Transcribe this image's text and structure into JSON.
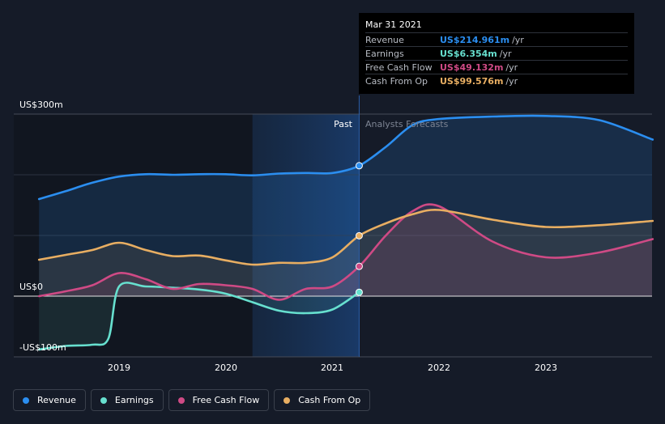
{
  "chart_data": {
    "type": "area",
    "y_tick_labels": [
      "US$300m",
      "US$0",
      "-US$100m"
    ],
    "x_tick_labels": [
      "2019",
      "2020",
      "2021",
      "2022",
      "2023"
    ],
    "ylim": [
      -100,
      300
    ],
    "past_label": "Past",
    "forecast_label": "Analysts Forecasts",
    "series": [
      {
        "name": "Revenue",
        "color": "#2b8ef0",
        "x": [
          2018.25,
          2018.5,
          2018.75,
          2019.0,
          2019.25,
          2019.5,
          2019.75,
          2020.0,
          2020.25,
          2020.5,
          2020.75,
          2021.0,
          2021.25,
          2021.5,
          2021.75,
          2022.0,
          2022.5,
          2023.0,
          2023.5,
          2024.0
        ],
        "values": [
          160,
          173,
          187,
          197,
          201,
          200,
          201,
          201,
          199,
          202,
          203,
          203,
          214.961,
          246,
          282,
          292,
          296,
          297,
          290,
          258
        ]
      },
      {
        "name": "Earnings",
        "color": "#67e0cf",
        "x": [
          2018.25,
          2018.5,
          2018.75,
          2018.9,
          2019.0,
          2019.25,
          2019.5,
          2019.75,
          2020.0,
          2020.25,
          2020.5,
          2020.75,
          2021.0,
          2021.25
        ],
        "values": [
          -88,
          -82,
          -80,
          -70,
          16,
          16,
          14,
          11,
          4,
          -10,
          -24,
          -28,
          -22,
          6.354
        ]
      },
      {
        "name": "Free Cash Flow",
        "color": "#cf4a85",
        "x": [
          2018.25,
          2018.5,
          2018.75,
          2019.0,
          2019.25,
          2019.5,
          2019.75,
          2020.0,
          2020.25,
          2020.5,
          2020.75,
          2021.0,
          2021.25,
          2021.5,
          2021.75,
          2022.0,
          2022.5,
          2023.0,
          2023.5,
          2024.0
        ],
        "values": [
          0,
          8,
          18,
          38,
          28,
          12,
          20,
          18,
          12,
          -6,
          12,
          16,
          49.132,
          100,
          140,
          148,
          90,
          64,
          72,
          94
        ]
      },
      {
        "name": "Cash From Op",
        "color": "#e8ae62",
        "x": [
          2018.25,
          2018.5,
          2018.75,
          2019.0,
          2019.25,
          2019.5,
          2019.75,
          2020.0,
          2020.25,
          2020.5,
          2020.75,
          2021.0,
          2021.25,
          2021.5,
          2021.75,
          2022.0,
          2022.5,
          2023.0,
          2023.5,
          2024.0
        ],
        "values": [
          60,
          68,
          76,
          88,
          76,
          66,
          67,
          59,
          52,
          55,
          55,
          64,
          99.576,
          120,
          135,
          142,
          126,
          114,
          117,
          124
        ]
      }
    ]
  },
  "tooltip": {
    "date": "Mar 31 2021",
    "rows": [
      {
        "name": "Revenue",
        "value": "US$214.961m",
        "unit": "/yr",
        "color": "#2b8ef0"
      },
      {
        "name": "Earnings",
        "value": "US$6.354m",
        "unit": "/yr",
        "color": "#67e0cf"
      },
      {
        "name": "Free Cash Flow",
        "value": "US$49.132m",
        "unit": "/yr",
        "color": "#cf4a85"
      },
      {
        "name": "Cash From Op",
        "value": "US$99.576m",
        "unit": "/yr",
        "color": "#e8ae62"
      }
    ]
  },
  "legend": [
    {
      "label": "Revenue",
      "color": "#2b8ef0"
    },
    {
      "label": "Earnings",
      "color": "#67e0cf"
    },
    {
      "label": "Free Cash Flow",
      "color": "#cf4a85"
    },
    {
      "label": "Cash From Op",
      "color": "#e8ae62"
    }
  ],
  "highlight_x": 2021.25,
  "past_shade_range": [
    2020.25,
    2021.25
  ]
}
